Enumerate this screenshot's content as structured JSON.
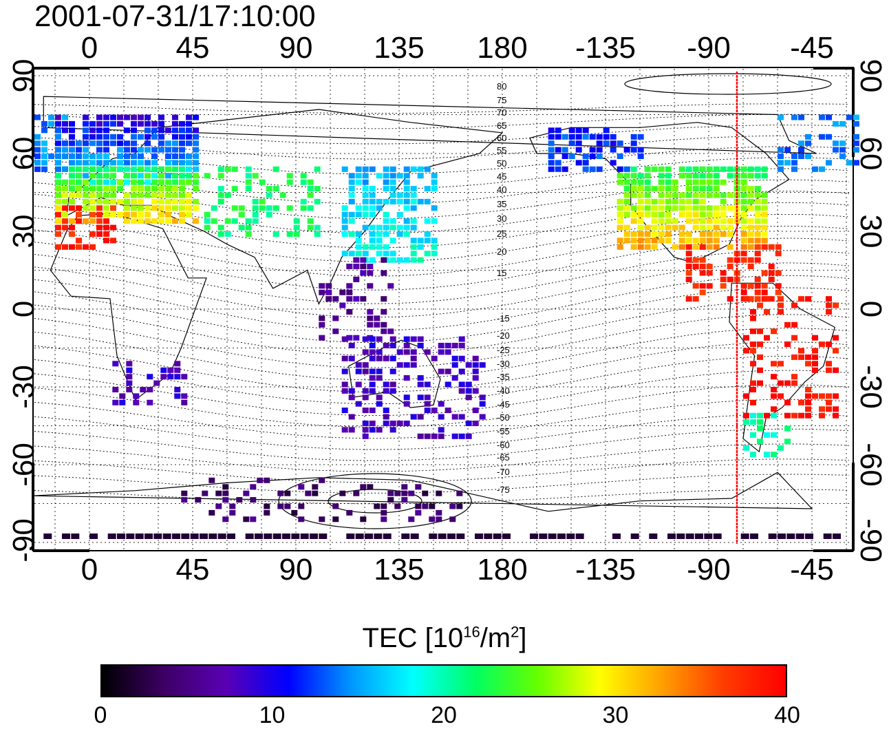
{
  "title": "2001-07-31/17:10:00",
  "map": {
    "top_longitude_labels": [
      "0",
      "45",
      "90",
      "135",
      "180",
      "-135",
      "-90",
      "-45"
    ],
    "bottom_longitude_labels": [
      "0",
      "45",
      "90",
      "135",
      "180",
      "-135",
      "-90",
      "-45"
    ],
    "left_latitude_labels": [
      "90",
      "60",
      "30",
      "0",
      "-30",
      "-60",
      "-90"
    ],
    "right_latitude_labels": [
      "90",
      "60",
      "30",
      "0",
      "-30",
      "-60",
      "-90"
    ],
    "contour_labels": [
      "80",
      "75",
      "70",
      "65",
      "60",
      "55",
      "50",
      "45",
      "40",
      "35",
      "30",
      "25",
      "20",
      "15",
      "-15",
      "-20",
      "-25",
      "-30",
      "-35",
      "-40",
      "-45",
      "-50",
      "-55",
      "-60",
      "-65",
      "-70",
      "-75"
    ],
    "marker_line_color": "#ff0000",
    "grid": "dotted"
  },
  "colorbar": {
    "title_prefix": "TEC  [10",
    "title_exp1": "16",
    "title_mid": "/m",
    "title_exp2": "2",
    "title_suffix": "]",
    "tick_labels": [
      "0",
      "10",
      "20",
      "30",
      "40"
    ],
    "range": [
      0,
      40
    ],
    "colors": [
      "#000000",
      "#3c0064",
      "#5a00b4",
      "#0000ff",
      "#0096ff",
      "#00ffff",
      "#00ff64",
      "#64ff00",
      "#ffff00",
      "#ffa000",
      "#ff3c00",
      "#ff0000"
    ]
  }
}
